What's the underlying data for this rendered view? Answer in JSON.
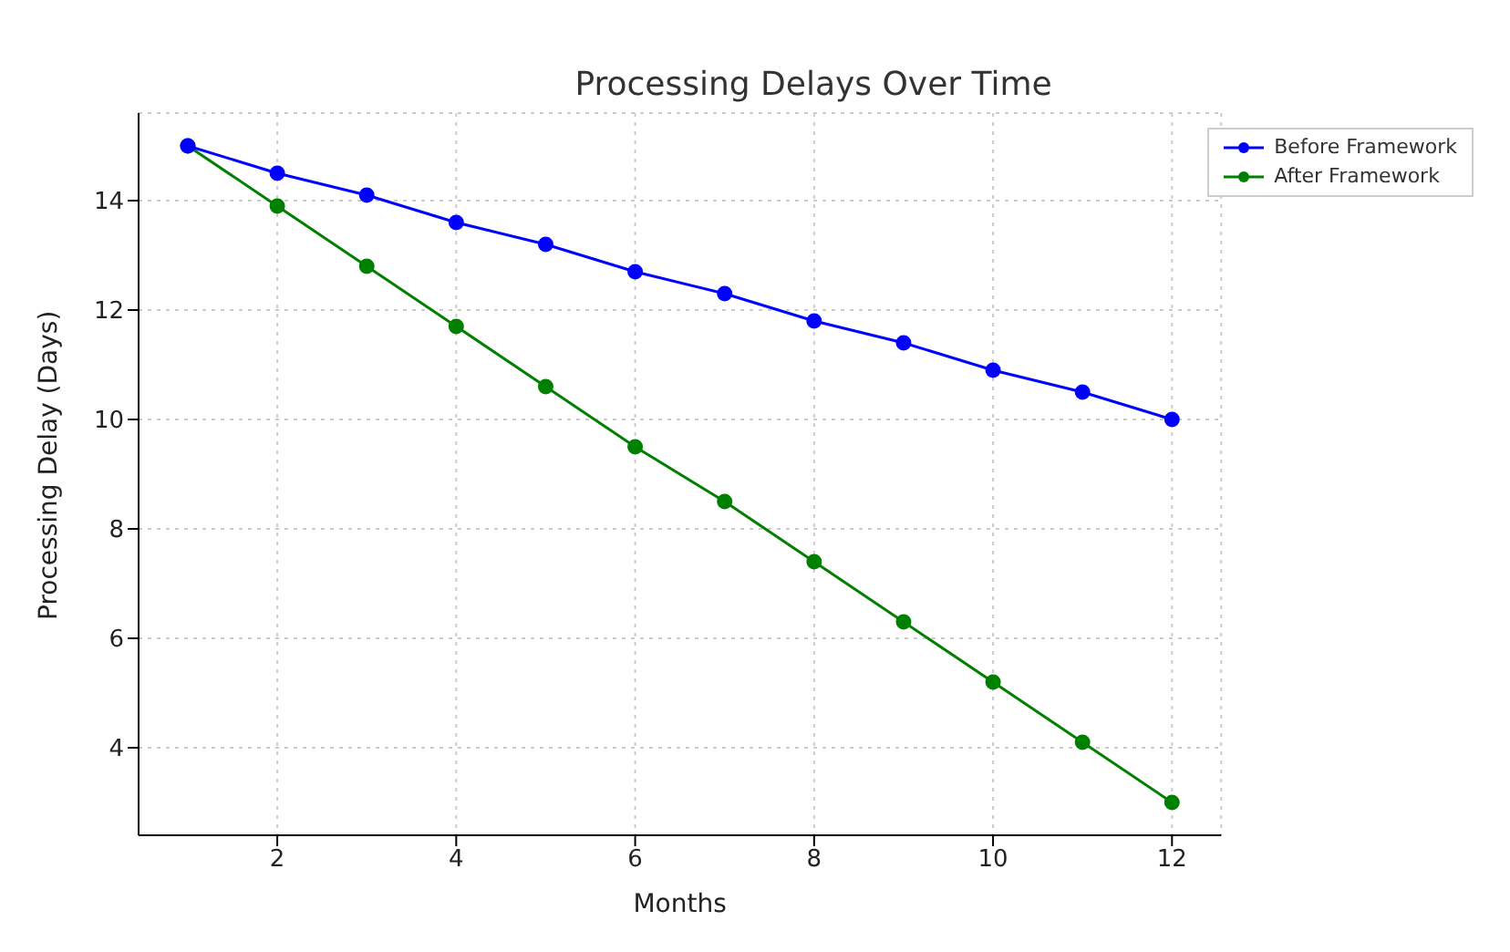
{
  "chart_data": {
    "type": "line",
    "title": "Processing Delays Over Time",
    "xlabel": "Months",
    "ylabel": "Processing Delay (Days)",
    "x": [
      1,
      2,
      3,
      4,
      5,
      6,
      7,
      8,
      9,
      10,
      11,
      12
    ],
    "series": [
      {
        "name": "Before Framework",
        "color": "#0000ff",
        "values": [
          15,
          14.5,
          14.1,
          13.6,
          13.2,
          12.7,
          12.3,
          11.8,
          11.4,
          10.9,
          10.5,
          10
        ]
      },
      {
        "name": "After Framework",
        "color": "#008000",
        "values": [
          15,
          13.9,
          12.8,
          11.7,
          10.6,
          9.5,
          8.5,
          7.4,
          6.3,
          5.2,
          4.1,
          3
        ]
      }
    ],
    "xlim": [
      0.45,
      12.55
    ],
    "xticks": [
      2,
      4,
      6,
      8,
      10,
      12
    ],
    "ylim": [
      2.4,
      15.6
    ],
    "yticks": [
      4,
      6,
      8,
      10,
      12,
      14
    ],
    "grid": true,
    "legend": "top right",
    "marker": "circle",
    "line_style": "solid"
  }
}
